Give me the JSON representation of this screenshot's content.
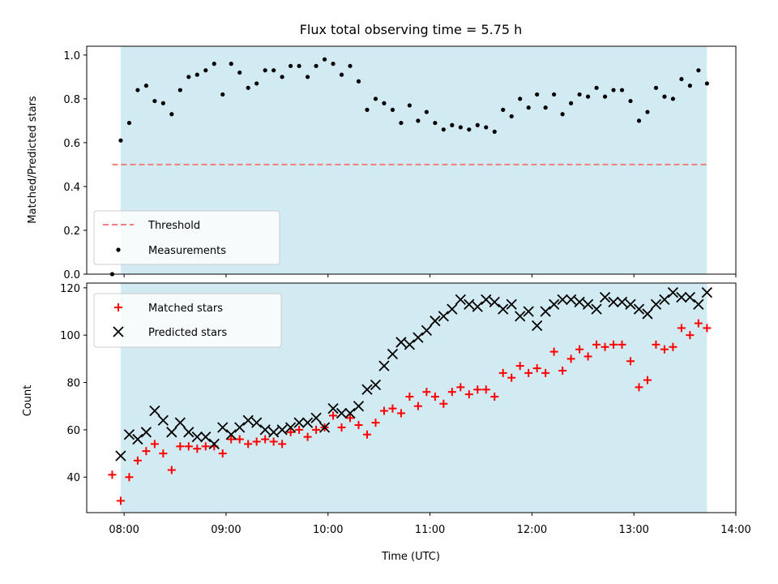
{
  "chart_data": [
    {
      "type": "scatter",
      "title": "Flux total observing time = 5.75 h",
      "ylabel": "Matched/Predicted stars",
      "xlabel": "",
      "xlim": [
        "07:38",
        "14:00"
      ],
      "ylim": [
        0,
        1.04
      ],
      "yticks": [
        "0.0",
        "0.2",
        "0.4",
        "0.6",
        "0.8",
        "1.0"
      ],
      "grid": false,
      "legend_position": "lower-left",
      "observing_window": {
        "start": "07:58",
        "end": "13:43",
        "color": "#add8e6"
      },
      "threshold": {
        "name": "Threshold",
        "value": 0.5,
        "color": "#f08080",
        "start": "07:53",
        "end": "13:43"
      },
      "series": [
        {
          "name": "Measurements",
          "color": "#000000",
          "marker": "dot",
          "x": [
            "07:53",
            "07:58",
            "08:03",
            "08:08",
            "08:13",
            "08:18",
            "08:23",
            "08:28",
            "08:33",
            "08:38",
            "08:43",
            "08:48",
            "08:53",
            "08:58",
            "09:03",
            "09:08",
            "09:13",
            "09:18",
            "09:23",
            "09:28",
            "09:33",
            "09:38",
            "09:43",
            "09:48",
            "09:53",
            "09:58",
            "10:03",
            "10:08",
            "10:13",
            "10:18",
            "10:23",
            "10:28",
            "10:33",
            "10:38",
            "10:43",
            "10:48",
            "10:53",
            "10:58",
            "11:03",
            "11:08",
            "11:13",
            "11:18",
            "11:23",
            "11:28",
            "11:33",
            "11:38",
            "11:43",
            "11:48",
            "11:53",
            "11:58",
            "12:03",
            "12:08",
            "12:13",
            "12:18",
            "12:23",
            "12:28",
            "12:33",
            "12:38",
            "12:43",
            "12:48",
            "12:53",
            "12:58",
            "13:03",
            "13:08",
            "13:13",
            "13:18",
            "13:23",
            "13:28",
            "13:33",
            "13:38",
            "13:43"
          ],
          "y": [
            0.0,
            0.61,
            0.69,
            0.84,
            0.86,
            0.79,
            0.78,
            0.73,
            0.84,
            0.9,
            0.91,
            0.93,
            0.96,
            0.82,
            0.96,
            0.92,
            0.85,
            0.87,
            0.93,
            0.93,
            0.9,
            0.95,
            0.95,
            0.9,
            0.95,
            0.98,
            0.96,
            0.91,
            0.95,
            0.88,
            0.75,
            0.8,
            0.78,
            0.75,
            0.69,
            0.77,
            0.7,
            0.74,
            0.69,
            0.66,
            0.68,
            0.67,
            0.66,
            0.68,
            0.67,
            0.65,
            0.75,
            0.72,
            0.8,
            0.76,
            0.82,
            0.76,
            0.82,
            0.73,
            0.78,
            0.82,
            0.81,
            0.85,
            0.81,
            0.84,
            0.84,
            0.79,
            0.7,
            0.74,
            0.85,
            0.81,
            0.8,
            0.89,
            0.86,
            0.93,
            0.87
          ]
        }
      ]
    },
    {
      "type": "scatter",
      "title": "",
      "ylabel": "Count",
      "xlabel": "Time (UTC)",
      "xlim": [
        "07:38",
        "14:00"
      ],
      "xticks": [
        "08:00",
        "09:00",
        "10:00",
        "11:00",
        "12:00",
        "13:00",
        "14:00"
      ],
      "ylim": [
        25,
        122
      ],
      "yticks": [
        "40",
        "60",
        "80",
        "100",
        "120"
      ],
      "grid": false,
      "legend_position": "upper-left",
      "observing_window": {
        "start": "07:58",
        "end": "13:43",
        "color": "#add8e6"
      },
      "series": [
        {
          "name": "Matched stars",
          "color": "#ff0000",
          "marker": "plus",
          "x": [
            "07:53",
            "07:58",
            "08:03",
            "08:08",
            "08:13",
            "08:18",
            "08:23",
            "08:28",
            "08:33",
            "08:38",
            "08:43",
            "08:48",
            "08:53",
            "08:58",
            "09:03",
            "09:08",
            "09:13",
            "09:18",
            "09:23",
            "09:28",
            "09:33",
            "09:38",
            "09:43",
            "09:48",
            "09:53",
            "09:58",
            "10:03",
            "10:08",
            "10:13",
            "10:18",
            "10:23",
            "10:28",
            "10:33",
            "10:38",
            "10:43",
            "10:48",
            "10:53",
            "10:58",
            "11:03",
            "11:08",
            "11:13",
            "11:18",
            "11:23",
            "11:28",
            "11:33",
            "11:38",
            "11:43",
            "11:48",
            "11:53",
            "11:58",
            "12:03",
            "12:08",
            "12:13",
            "12:18",
            "12:23",
            "12:28",
            "12:33",
            "12:38",
            "12:43",
            "12:48",
            "12:53",
            "12:58",
            "13:03",
            "13:08",
            "13:13",
            "13:18",
            "13:23",
            "13:28",
            "13:33",
            "13:38",
            "13:43"
          ],
          "y": [
            41,
            30,
            40,
            47,
            51,
            54,
            50,
            43,
            53,
            53,
            52,
            53,
            53,
            50,
            56,
            56,
            54,
            55,
            56,
            55,
            54,
            59,
            60,
            57,
            60,
            61,
            66,
            61,
            65,
            62,
            58,
            63,
            68,
            69,
            67,
            74,
            70,
            76,
            74,
            71,
            76,
            78,
            75,
            77,
            77,
            74,
            84,
            82,
            87,
            84,
            86,
            84,
            93,
            85,
            90,
            94,
            91,
            96,
            95,
            96,
            96,
            89,
            78,
            81,
            96,
            94,
            95,
            103,
            100,
            105,
            103
          ]
        },
        {
          "name": "Predicted stars",
          "color": "#000000",
          "marker": "x",
          "x": [
            "07:58",
            "08:03",
            "08:08",
            "08:13",
            "08:18",
            "08:23",
            "08:28",
            "08:33",
            "08:38",
            "08:43",
            "08:48",
            "08:53",
            "08:58",
            "09:03",
            "09:08",
            "09:13",
            "09:18",
            "09:23",
            "09:28",
            "09:33",
            "09:38",
            "09:43",
            "09:48",
            "09:53",
            "09:58",
            "10:03",
            "10:08",
            "10:13",
            "10:18",
            "10:23",
            "10:28",
            "10:33",
            "10:38",
            "10:43",
            "10:48",
            "10:53",
            "10:58",
            "11:03",
            "11:08",
            "11:13",
            "11:18",
            "11:23",
            "11:28",
            "11:33",
            "11:38",
            "11:43",
            "11:48",
            "11:53",
            "11:58",
            "12:03",
            "12:08",
            "12:13",
            "12:18",
            "12:23",
            "12:28",
            "12:33",
            "12:38",
            "12:43",
            "12:48",
            "12:53",
            "12:58",
            "13:03",
            "13:08",
            "13:13",
            "13:18",
            "13:23",
            "13:28",
            "13:33",
            "13:38",
            "13:43"
          ],
          "y": [
            49,
            58,
            56,
            59,
            68,
            64,
            59,
            63,
            59,
            57,
            57,
            54,
            61,
            58,
            61,
            64,
            63,
            60,
            59,
            60,
            61,
            63,
            63,
            65,
            61,
            69,
            67,
            67,
            70,
            77,
            79,
            87,
            92,
            97,
            96,
            99,
            102,
            106,
            108,
            111,
            115,
            113,
            112,
            115,
            114,
            111,
            113,
            108,
            110,
            104,
            110,
            113,
            115,
            115,
            114,
            113,
            111,
            116,
            114,
            114,
            113,
            111,
            109,
            113,
            115,
            118,
            116,
            116,
            113,
            118
          ]
        }
      ]
    }
  ]
}
